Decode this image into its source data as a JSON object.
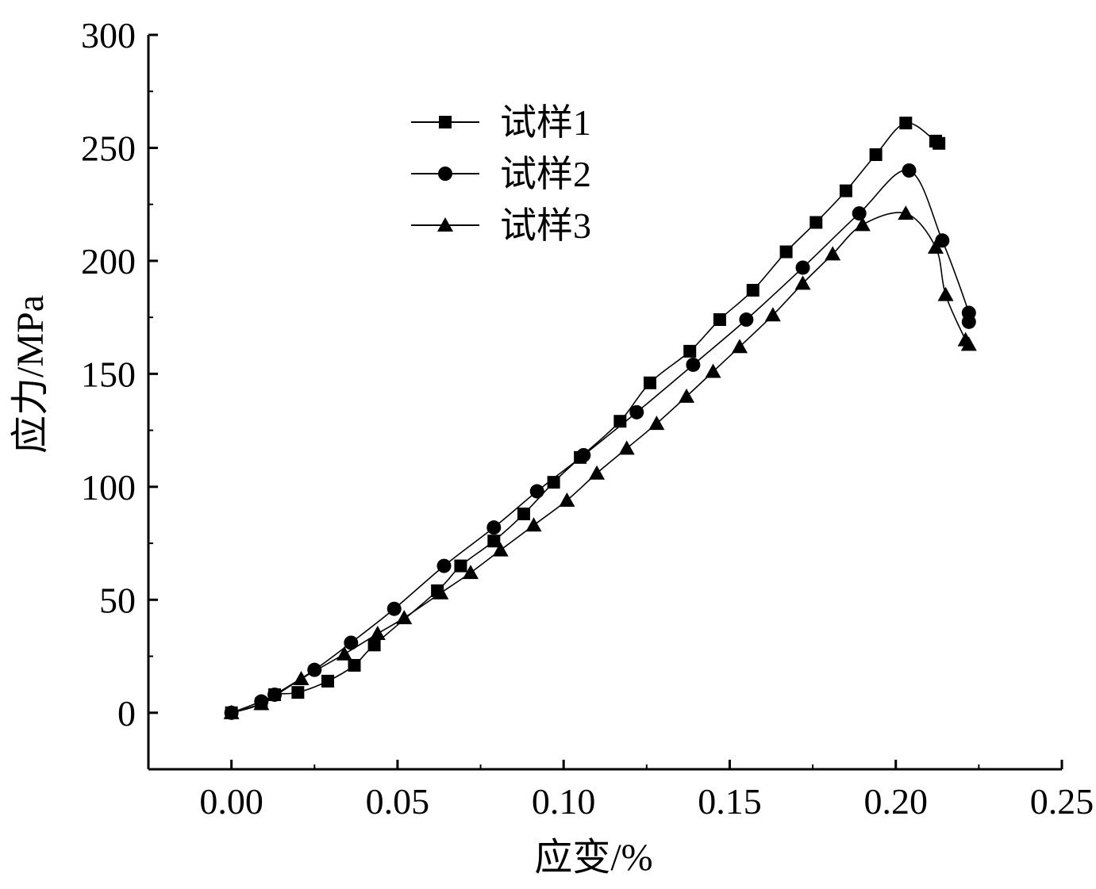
{
  "chart_data": {
    "type": "line",
    "xlabel": "应变/%",
    "ylabel": "应力/MPa",
    "xlim": [
      -0.025,
      0.25
    ],
    "ylim": [
      -25,
      300
    ],
    "xticks": [
      "0.00",
      "0.05",
      "0.10",
      "0.15",
      "0.20",
      "0.25"
    ],
    "xtick_values": [
      0.0,
      0.05,
      0.1,
      0.15,
      0.2,
      0.25
    ],
    "yticks": [
      "0",
      "50",
      "100",
      "150",
      "200",
      "250",
      "300"
    ],
    "ytick_values": [
      0,
      50,
      100,
      150,
      200,
      250,
      300
    ],
    "grid": false,
    "legend_position": "top-center",
    "series": [
      {
        "name": "试样1",
        "marker": "square",
        "x": [
          0.0,
          0.009,
          0.013,
          0.02,
          0.029,
          0.037,
          0.043,
          0.062,
          0.069,
          0.079,
          0.088,
          0.097,
          0.105,
          0.117,
          0.126,
          0.138,
          0.147,
          0.157,
          0.167,
          0.176,
          0.185,
          0.194,
          0.203,
          0.212,
          0.213
        ],
        "y": [
          0,
          4,
          8,
          9,
          14,
          21,
          30,
          54,
          65,
          76,
          88,
          102,
          113,
          129,
          146,
          160,
          174,
          187,
          204,
          217,
          231,
          247,
          261,
          253,
          252
        ]
      },
      {
        "name": "试样2",
        "marker": "circle",
        "x": [
          0.0,
          0.009,
          0.013,
          0.025,
          0.036,
          0.049,
          0.064,
          0.079,
          0.092,
          0.106,
          0.122,
          0.139,
          0.155,
          0.172,
          0.189,
          0.204,
          0.214,
          0.222,
          0.222
        ],
        "y": [
          0,
          5,
          8,
          19,
          31,
          46,
          65,
          82,
          98,
          114,
          133,
          154,
          174,
          197,
          221,
          240,
          209,
          177,
          173
        ]
      },
      {
        "name": "试样3",
        "marker": "triangle",
        "x": [
          0.0,
          0.009,
          0.021,
          0.034,
          0.044,
          0.052,
          0.063,
          0.072,
          0.081,
          0.091,
          0.101,
          0.11,
          0.119,
          0.128,
          0.137,
          0.145,
          0.153,
          0.163,
          0.172,
          0.181,
          0.19,
          0.203,
          0.212,
          0.215,
          0.221,
          0.222
        ],
        "y": [
          0,
          4,
          15,
          26,
          35,
          42,
          53,
          62,
          72,
          83,
          94,
          106,
          117,
          128,
          140,
          151,
          162,
          176,
          190,
          203,
          216,
          221,
          206,
          185,
          165,
          163
        ]
      }
    ]
  }
}
